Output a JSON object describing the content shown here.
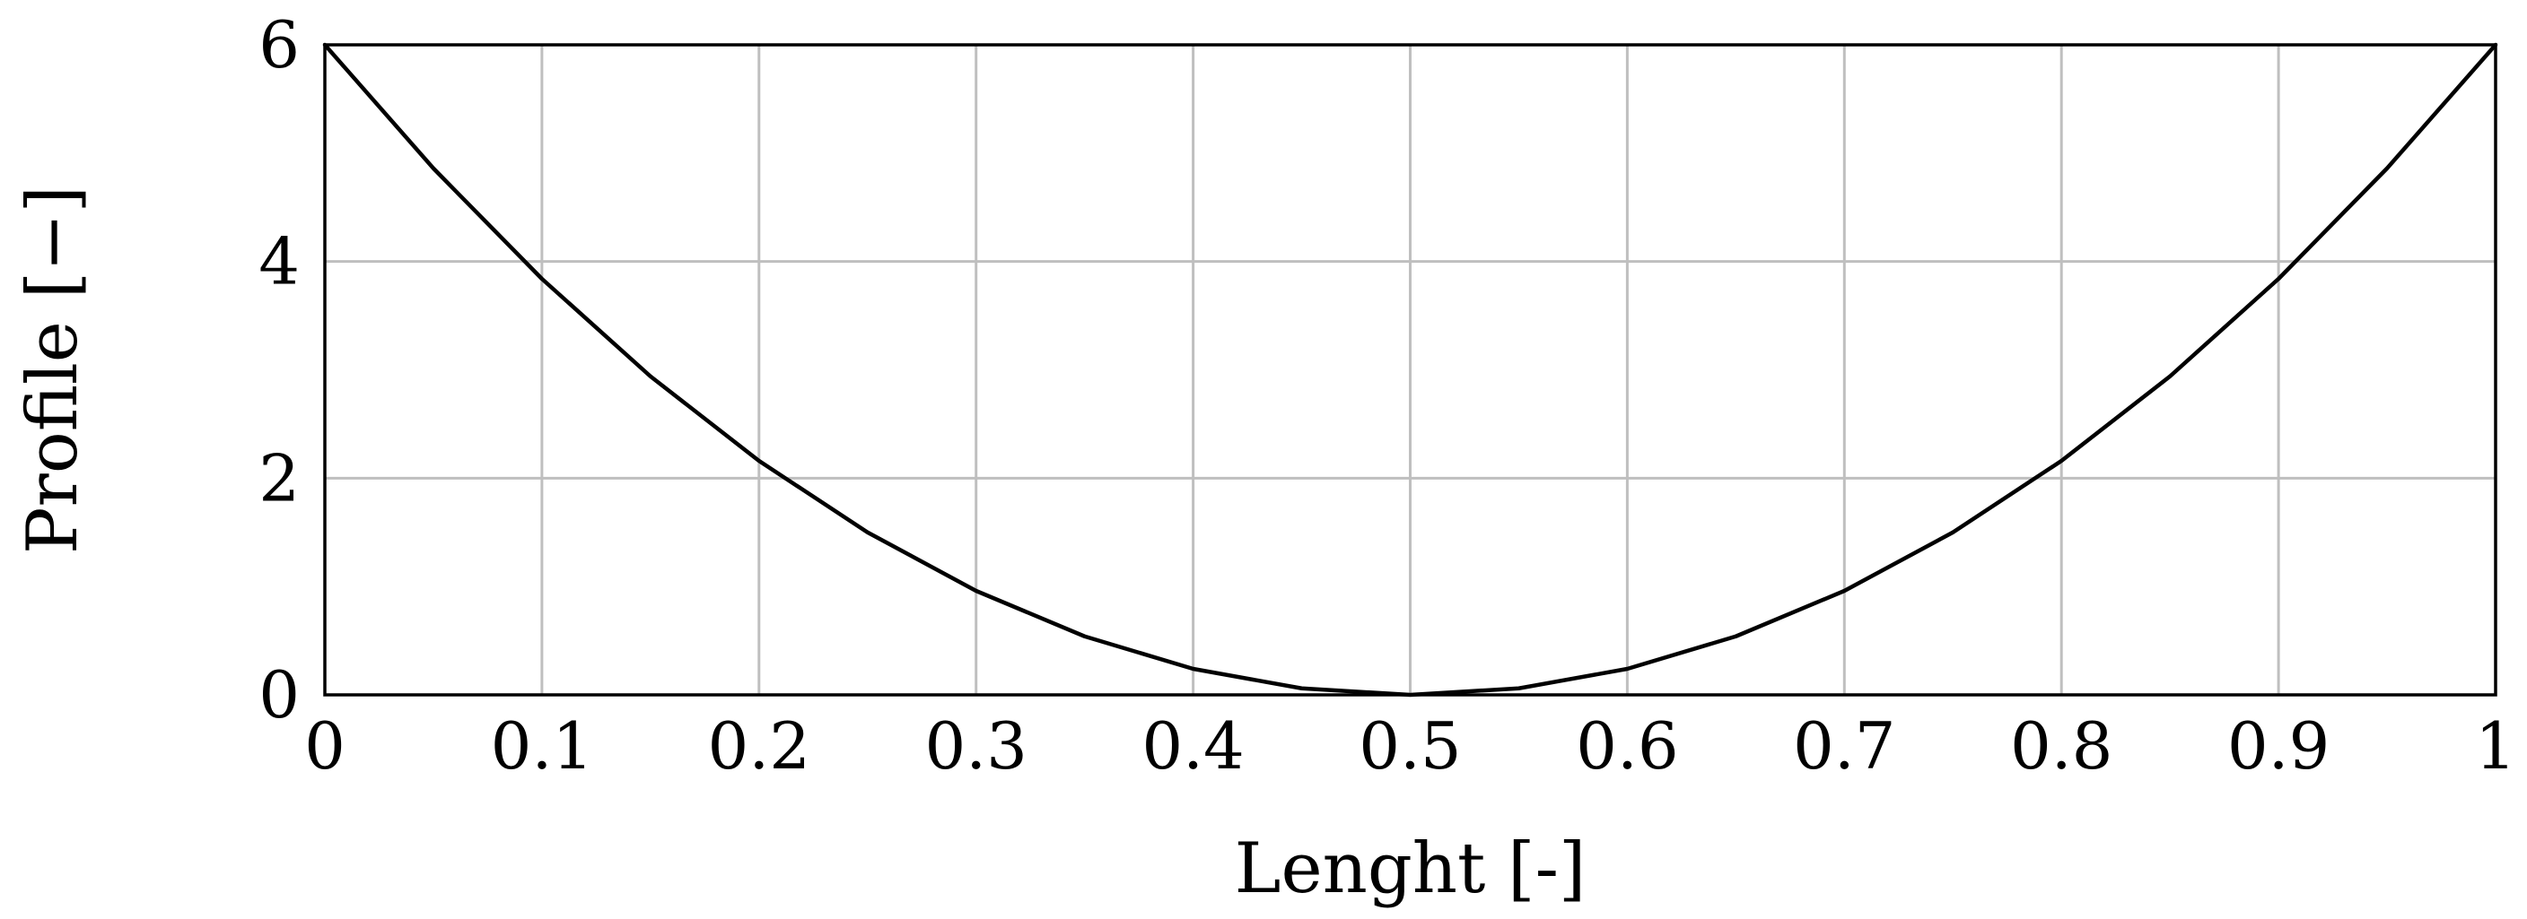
{
  "chart_data": {
    "type": "line",
    "xlabel": "Lenght [-]",
    "ylabel": "Profile [−]",
    "xlim": [
      0,
      1
    ],
    "ylim": [
      0,
      6
    ],
    "x_ticks": [
      "0",
      "0.1",
      "0.2",
      "0.3",
      "0.4",
      "0.5",
      "0.6",
      "0.7",
      "0.8",
      "0.9",
      "1"
    ],
    "y_ticks": [
      "0",
      "2",
      "4",
      "6"
    ],
    "grid": true,
    "line_color": "#000000",
    "grid_color": "#bfbfbf",
    "series": [
      {
        "x": [
          0,
          0.05,
          0.1,
          0.15,
          0.2,
          0.25,
          0.3,
          0.35,
          0.4,
          0.45,
          0.5,
          0.55,
          0.6,
          0.65,
          0.7,
          0.75,
          0.8,
          0.85,
          0.9,
          0.95,
          1
        ],
        "values": [
          6.0,
          4.86,
          3.84,
          2.94,
          2.16,
          1.5,
          0.96,
          0.54,
          0.24,
          0.06,
          0.0,
          0.06,
          0.24,
          0.54,
          0.96,
          1.5,
          2.16,
          2.94,
          3.84,
          4.86,
          6.0
        ]
      }
    ]
  }
}
